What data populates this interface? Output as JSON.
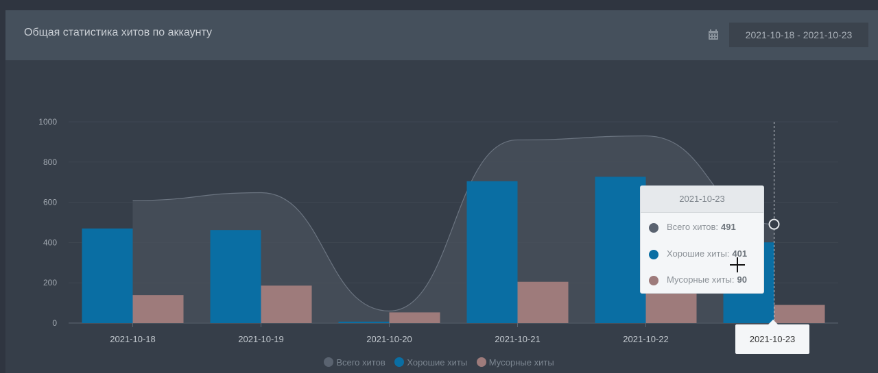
{
  "panel": {
    "title": "Общая статистика хитов по аккаунту",
    "date_range": "2021-10-18 - 2021-10-23"
  },
  "colors": {
    "total": "#5a6370",
    "good": "#0a6ea3",
    "junk": "#9e7b7b",
    "area_fill": "#4a525c"
  },
  "chart_data": {
    "type": "bar",
    "categories": [
      "2021-10-18",
      "2021-10-19",
      "2021-10-20",
      "2021-10-21",
      "2021-10-22",
      "2021-10-23"
    ],
    "series": [
      {
        "name": "Всего хитов",
        "render": "area",
        "values": [
          609,
          648,
          60,
          910,
          930,
          491
        ]
      },
      {
        "name": "Хорошие хиты",
        "render": "bar",
        "values": [
          470,
          462,
          7,
          705,
          727,
          401
        ]
      },
      {
        "name": "Мусорные хиты",
        "render": "bar",
        "values": [
          139,
          186,
          53,
          205,
          203,
          90
        ]
      }
    ],
    "yticks": [
      0,
      200,
      400,
      600,
      800,
      1000
    ],
    "ylim": [
      0,
      1000
    ],
    "grid": true,
    "legend": "bottom",
    "tooltip": {
      "title": "2021-10-23",
      "rows": [
        {
          "label": "Всего хитов:",
          "value": "491"
        },
        {
          "label": "Хорошие хиты:",
          "value": "401"
        },
        {
          "label": "Мусорные хиты:",
          "value": "90"
        }
      ]
    },
    "highlight_label": "2021-10-23"
  }
}
